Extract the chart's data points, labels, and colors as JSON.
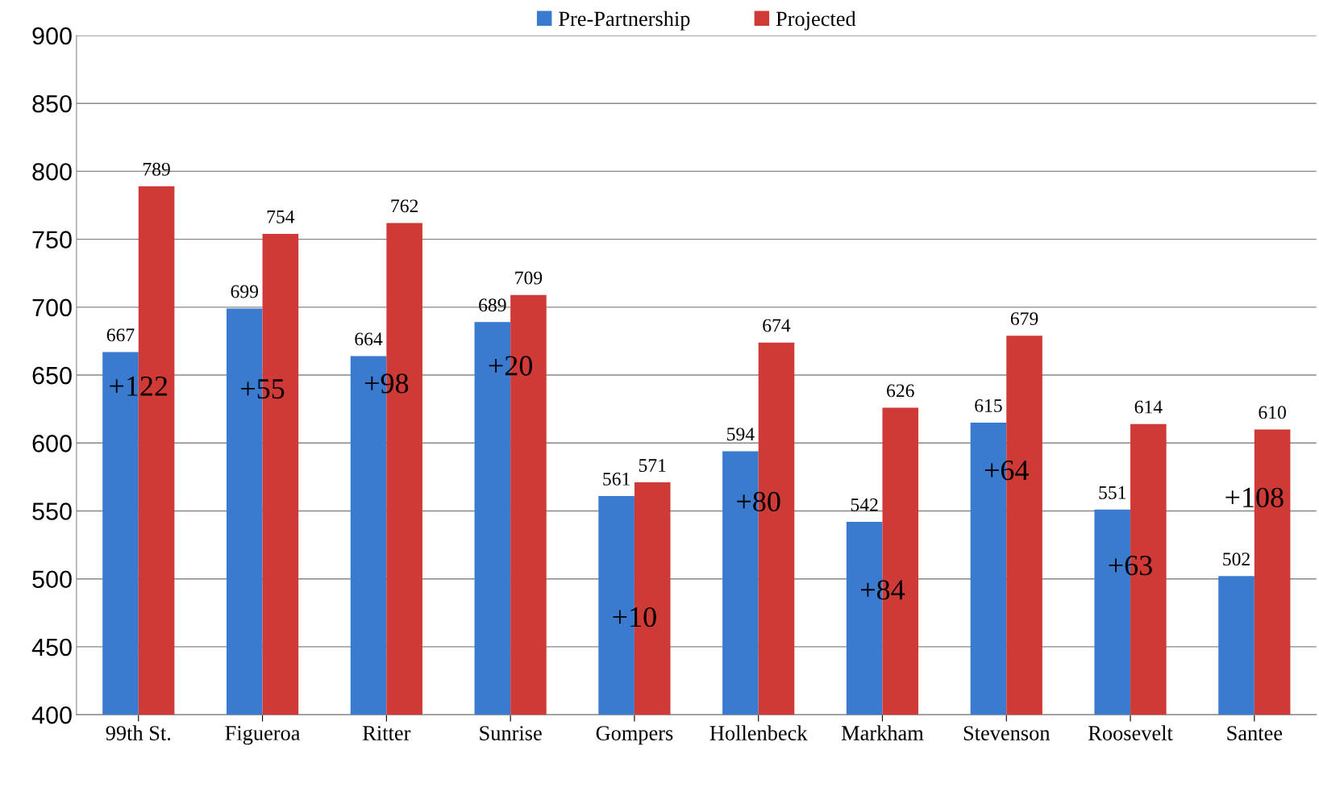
{
  "chart_data": {
    "type": "bar",
    "categories": [
      "99th St.",
      "Figueroa",
      "Ritter",
      "Sunrise",
      "Gompers",
      "Hollenbeck",
      "Markham",
      "Stevenson",
      "Roosevelt",
      "Santee"
    ],
    "series": [
      {
        "name": "Pre-Partnership",
        "color": "#3a7bd0",
        "values": [
          667,
          699,
          664,
          689,
          561,
          594,
          542,
          615,
          551,
          502
        ]
      },
      {
        "name": "Projected",
        "color": "#d03a36",
        "values": [
          789,
          754,
          762,
          709,
          571,
          674,
          626,
          679,
          614,
          610
        ]
      }
    ],
    "ylim": [
      400,
      900
    ],
    "yticks": [
      400,
      450,
      500,
      550,
      600,
      650,
      700,
      750,
      800,
      850,
      900
    ],
    "grid": "y",
    "legend": "top",
    "data_labels": true,
    "annotations": [
      {
        "text": "+122",
        "x": "99th St.",
        "y": 640
      },
      {
        "text": "+55",
        "x": "Figueroa",
        "y": 638
      },
      {
        "text": "+98",
        "x": "Ritter",
        "y": 642
      },
      {
        "text": "+20",
        "x": "Sunrise",
        "y": 655
      },
      {
        "text": "+10",
        "x": "Gompers",
        "y": 470
      },
      {
        "text": "+80",
        "x": "Hollenbeck",
        "y": 555
      },
      {
        "text": "+84",
        "x": "Markham",
        "y": 490
      },
      {
        "text": "+64",
        "x": "Stevenson",
        "y": 578
      },
      {
        "text": "+63",
        "x": "Roosevelt",
        "y": 508
      },
      {
        "text": "+108",
        "x": "Santee",
        "y": 558
      }
    ]
  }
}
